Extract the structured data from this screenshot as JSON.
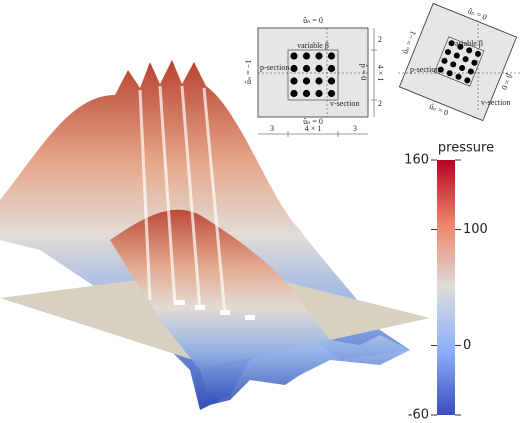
{
  "diagram_straight": {
    "top": "ûₙ = 0",
    "left": "ûₙ = −1",
    "right": "p̂ = 0",
    "bottom": "ûₙ = 0",
    "inner": "variable β",
    "p_section": "p-section",
    "v_section": "v-section",
    "dim_right": [
      "2",
      "4 × 1",
      "2"
    ],
    "dim_bottom": [
      "3",
      "4 × 1",
      "3"
    ]
  },
  "diagram_rotated": {
    "top": "ûₙ = 0",
    "left": "ûₙ = −1",
    "right": "p̂ = 0",
    "bottom": "ûₙ = 0",
    "inner": "variable β",
    "p_section": "p-section",
    "v_section": "v-section"
  },
  "colorbar": {
    "title": "pressure",
    "range": [
      -60,
      160
    ],
    "ticks": [
      160,
      100,
      0,
      -60
    ]
  }
}
